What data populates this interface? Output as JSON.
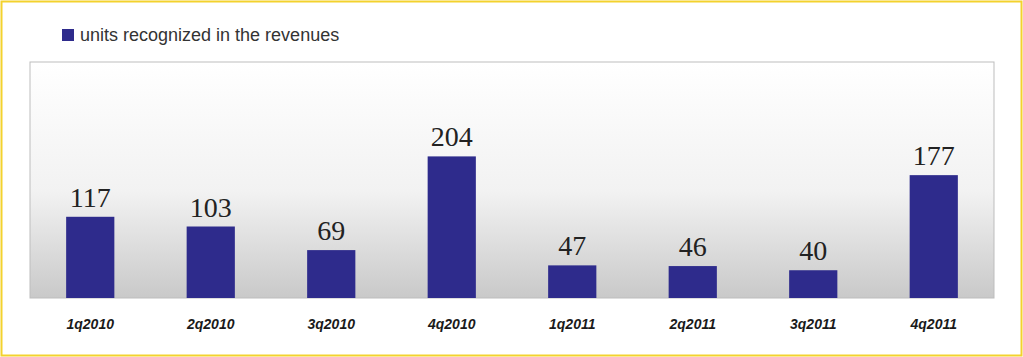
{
  "chart_data": {
    "type": "bar",
    "categories": [
      "1q2010",
      "2q2010",
      "3q2010",
      "4q2010",
      "1q2011",
      "2q2011",
      "3q2011",
      "4q2011"
    ],
    "series": [
      {
        "name": "units recognized in the revenues",
        "color": "#2e2b8c",
        "values": [
          117,
          103,
          69,
          204,
          47,
          46,
          40,
          177
        ]
      }
    ],
    "ylim": [
      0,
      340
    ],
    "data_labels": true,
    "legend": "top-left",
    "tick_labels": "x"
  }
}
